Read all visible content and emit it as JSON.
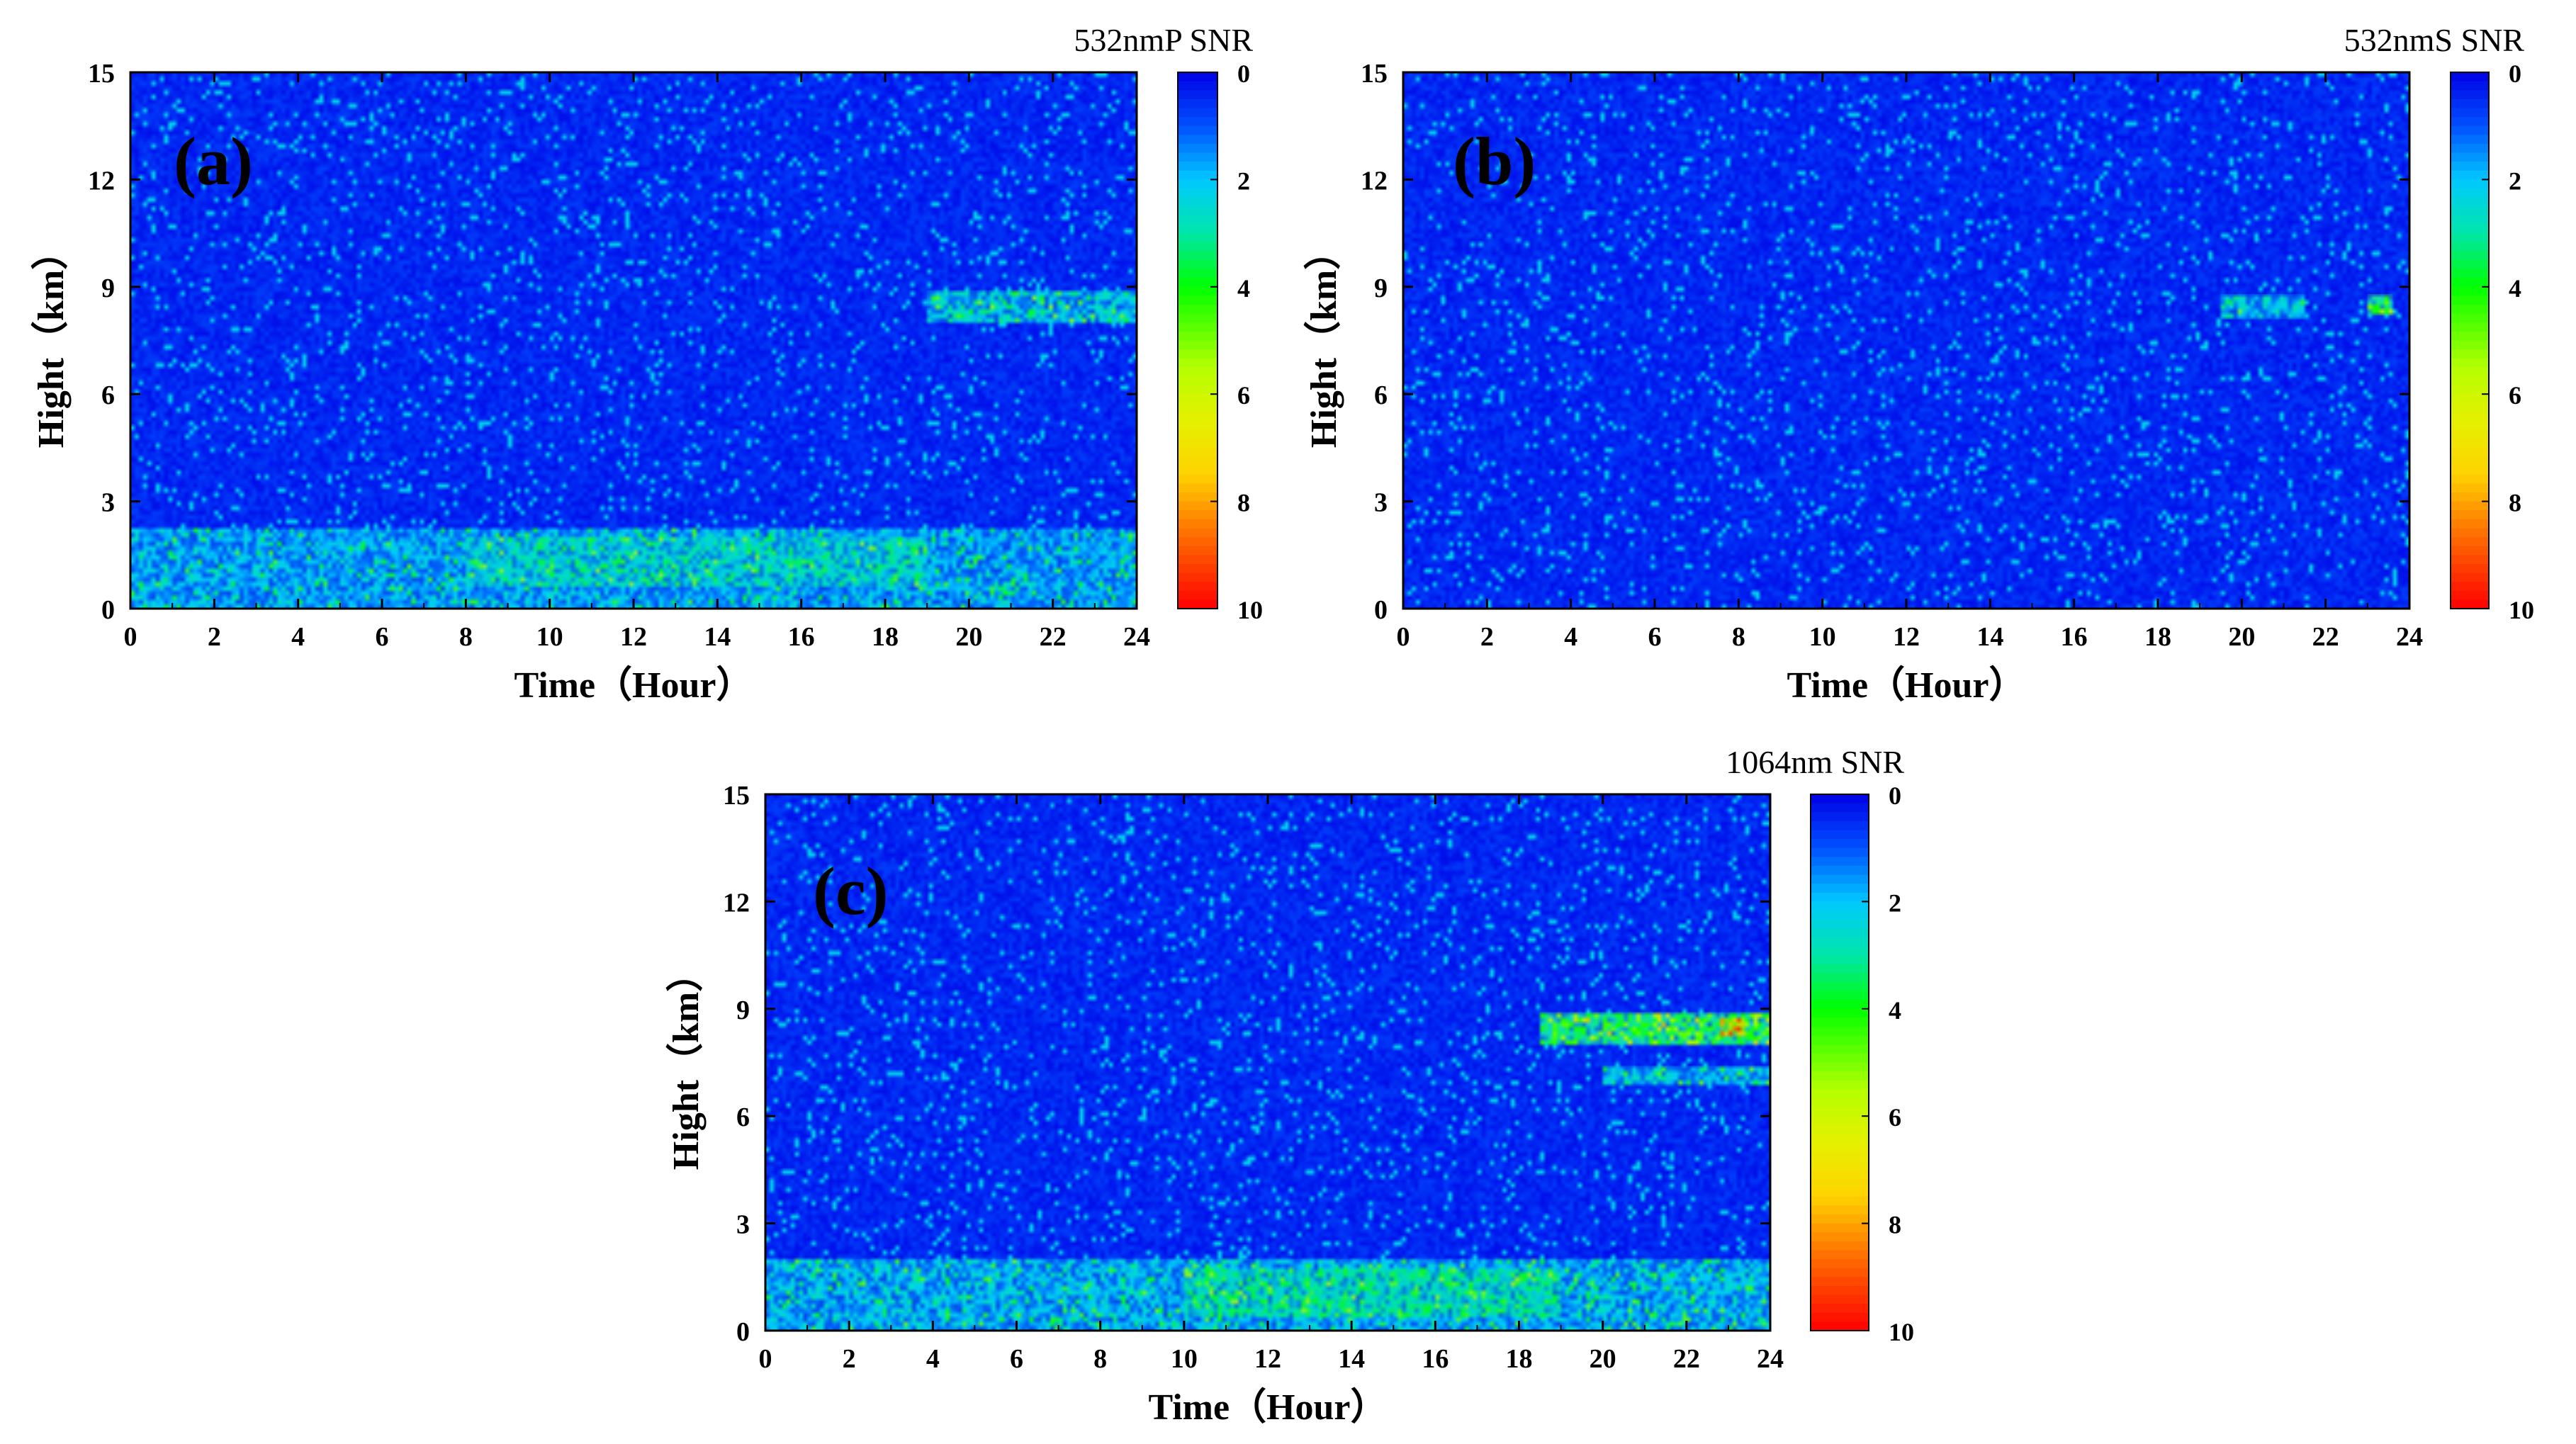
{
  "chart_data": [
    {
      "type": "heatmap",
      "panel": "(a)",
      "colorbar_title": "532nmP SNR",
      "xlabel": "Time（Hour）",
      "ylabel": "Hight（km）",
      "xlim": [
        0,
        24
      ],
      "ylim": [
        0,
        15
      ],
      "x_ticks": [
        "0",
        "2",
        "4",
        "6",
        "8",
        "10",
        "12",
        "14",
        "16",
        "18",
        "20",
        "22",
        "24"
      ],
      "y_ticks": [
        "0",
        "3",
        "6",
        "9",
        "12",
        "15"
      ],
      "colorbar_ticks": [
        "0",
        "2",
        "4",
        "6",
        "8",
        "10"
      ],
      "colorbar_range": [
        0,
        10
      ],
      "features": [
        {
          "x0": 0,
          "x1": 24,
          "y0": 0,
          "y1": 2.2,
          "intensity": 2.3
        },
        {
          "x0": 8,
          "x1": 19,
          "y0": 0.6,
          "y1": 2.0,
          "intensity": 3.2
        },
        {
          "x0": 19,
          "x1": 24,
          "y0": 8.0,
          "y1": 8.9,
          "intensity": 2.8
        }
      ]
    },
    {
      "type": "heatmap",
      "panel": "(b)",
      "colorbar_title": "532nmS SNR",
      "xlabel": "Time（Hour）",
      "ylabel": "Hight（km）",
      "xlim": [
        0,
        24
      ],
      "ylim": [
        0,
        15
      ],
      "x_ticks": [
        "0",
        "2",
        "4",
        "6",
        "8",
        "10",
        "12",
        "14",
        "16",
        "18",
        "20",
        "22",
        "24"
      ],
      "y_ticks": [
        "0",
        "3",
        "6",
        "9",
        "12",
        "15"
      ],
      "colorbar_ticks": [
        "0",
        "2",
        "4",
        "6",
        "8",
        "10"
      ],
      "colorbar_range": [
        0,
        10
      ],
      "features": [
        {
          "x0": 19.5,
          "x1": 21.5,
          "y0": 8.1,
          "y1": 8.8,
          "intensity": 2.6
        },
        {
          "x0": 23.0,
          "x1": 23.6,
          "y0": 8.2,
          "y1": 8.8,
          "intensity": 4.8
        }
      ]
    },
    {
      "type": "heatmap",
      "panel": "(c)",
      "colorbar_title": "1064nm SNR",
      "xlabel": "Time（Hour）",
      "ylabel": "Hight（km）",
      "xlim": [
        0,
        24
      ],
      "ylim": [
        0,
        15
      ],
      "x_ticks": [
        "0",
        "2",
        "4",
        "6",
        "8",
        "10",
        "12",
        "14",
        "16",
        "18",
        "20",
        "22",
        "24"
      ],
      "y_ticks": [
        "0",
        "3",
        "6",
        "9",
        "12",
        "15"
      ],
      "colorbar_ticks": [
        "0",
        "2",
        "4",
        "6",
        "8",
        "10"
      ],
      "colorbar_range": [
        0,
        10
      ],
      "features": [
        {
          "x0": 0,
          "x1": 24,
          "y0": 0,
          "y1": 2.0,
          "intensity": 2.5
        },
        {
          "x0": 10,
          "x1": 19,
          "y0": 0.4,
          "y1": 1.7,
          "intensity": 3.6
        },
        {
          "x0": 18.5,
          "x1": 24,
          "y0": 8.0,
          "y1": 8.9,
          "intensity": 4.6
        },
        {
          "x0": 22.8,
          "x1": 23.4,
          "y0": 8.2,
          "y1": 8.7,
          "intensity": 8.5
        },
        {
          "x0": 20,
          "x1": 24,
          "y0": 6.9,
          "y1": 7.4,
          "intensity": 2.6
        }
      ]
    }
  ],
  "colors": {
    "colormap": [
      "#0000ff",
      "#0055ff",
      "#00c8ff",
      "#00e0a0",
      "#00ff00",
      "#c8ff00",
      "#ffd400",
      "#ff8000",
      "#ff0000"
    ],
    "axis": "#000000",
    "background": "#ffffff"
  }
}
